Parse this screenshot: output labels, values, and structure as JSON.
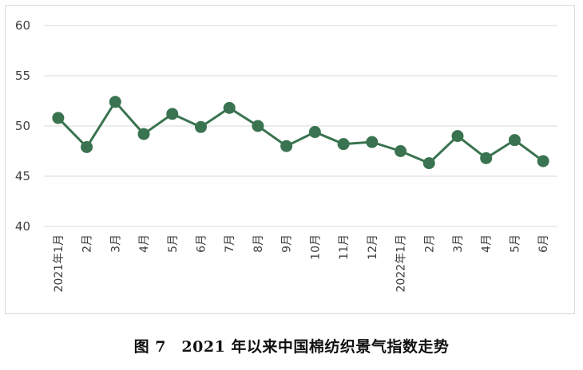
{
  "caption": "图 7　2021 年以来中国棉纺织景气指数走势",
  "colors": {
    "series": "#3a7350",
    "grid": "#d9d9d9",
    "text": "#404040"
  },
  "chart_data": {
    "type": "line",
    "title": "",
    "xlabel": "",
    "ylabel": "",
    "ylim": [
      40,
      60
    ],
    "yticks": [
      40,
      45,
      50,
      55,
      60
    ],
    "grid": "horizontal",
    "legend": "none",
    "categories": [
      "2021年1月",
      "2月",
      "3月",
      "4月",
      "5月",
      "6月",
      "7月",
      "8月",
      "9月",
      "10月",
      "11月",
      "12月",
      "2022年1月",
      "2月",
      "3月",
      "4月",
      "5月",
      "6月"
    ],
    "series": [
      {
        "values": [
          50.8,
          47.9,
          52.4,
          49.2,
          51.2,
          49.9,
          51.8,
          50.0,
          48.0,
          49.4,
          48.2,
          48.4,
          47.5,
          46.3,
          49.0,
          46.8,
          48.6,
          46.5
        ]
      }
    ]
  }
}
